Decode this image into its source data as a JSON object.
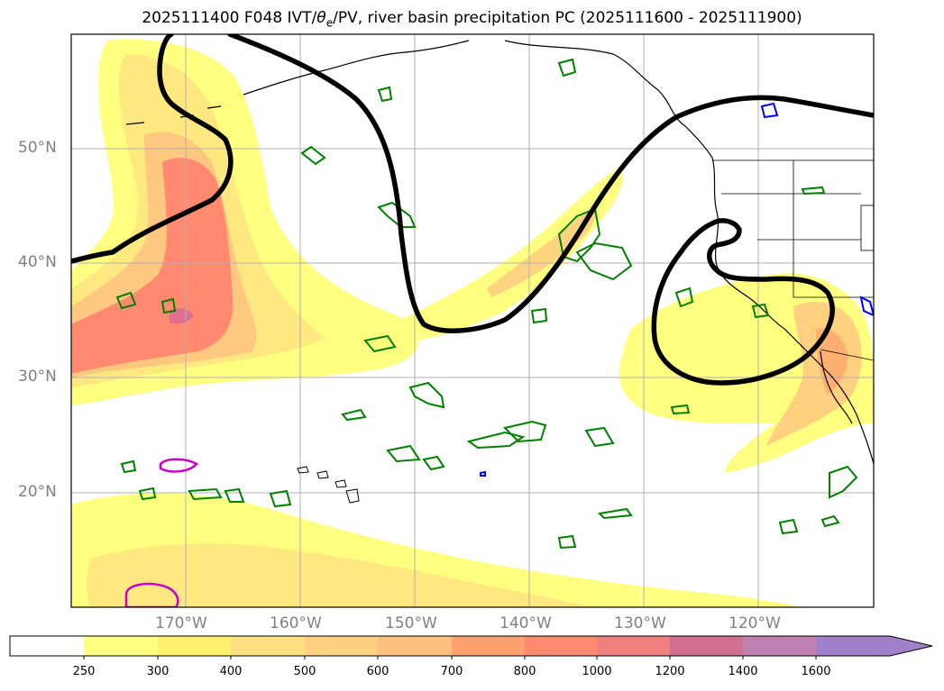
{
  "title": {
    "prefix": "2025111400 F048 IVT/",
    "theta": "θ",
    "theta_sub": "e",
    "suffix": "/PV, river basin precipitation PC (2025111600 - 2025111900)"
  },
  "axes": {
    "lat_labels": [
      "50°N",
      "40°N",
      "30°N",
      "20°N"
    ],
    "lon_labels": [
      "170°W",
      "160°W",
      "150°W",
      "140°W",
      "130°W",
      "120°W"
    ]
  },
  "colorbar": {
    "ticks": [
      "250",
      "300",
      "400",
      "500",
      "600",
      "700",
      "800",
      "1000",
      "1200",
      "1400",
      "1600"
    ],
    "colors": [
      "#ffffff",
      "#ffff80",
      "#fff070",
      "#ffe080",
      "#ffd080",
      "#ffc080",
      "#ffa070",
      "#ff8a70",
      "#f08080",
      "#d07090",
      "#c080b0",
      "#a080c8"
    ],
    "extend": "max"
  },
  "colors": {
    "pv_contour": "#000000",
    "precip_green": "#008000",
    "precip_blue": "#0000ff",
    "precip_magenta": "#cc00cc",
    "grid": "#b0b0b0",
    "coastline": "#000000"
  }
}
